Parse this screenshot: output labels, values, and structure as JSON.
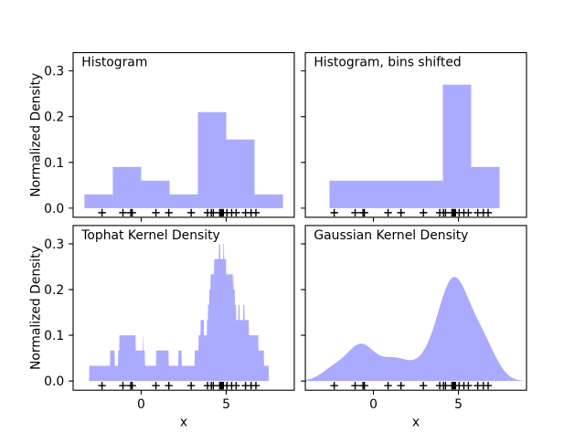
{
  "figure": {
    "background": "#ffffff",
    "description": "2x2 grid of density-estimation panels with shared axes"
  },
  "chart_data": {
    "type": "area",
    "xlabel": "x",
    "ylabel": "Normalized Density",
    "xlim": [
      -4,
      9
    ],
    "ylim": [
      -0.02,
      0.34
    ],
    "grid": false,
    "legend": null,
    "xticks": {
      "values": [
        0,
        5
      ],
      "labels": [
        "0",
        "5"
      ]
    },
    "yticks": {
      "values": [
        0.0,
        0.1,
        0.2,
        0.3
      ],
      "labels": [
        "0.0",
        "0.1",
        "0.2",
        "0.3"
      ]
    },
    "fill_color": "#aaaaff",
    "marker": {
      "symbol": "+",
      "color": "#000000",
      "y": -0.01
    },
    "title_position": [
      -3.5,
      0.31
    ],
    "data_points": [
      1.6243,
      -0.6118,
      -0.5282,
      -1.073,
      0.8654,
      -2.3015,
      6.7448,
      4.2388,
      5.319,
      4.7506,
      6.4621,
      2.9399,
      4.6776,
      4.6159,
      6.1338,
      3.9001,
      4.8276,
      4.1221,
      5.0422,
      5.5828
    ],
    "panels": [
      {
        "id": "histogram",
        "title": "Histogram",
        "kind": "histogram",
        "bin_edges": [
          -5,
          -3.3333,
          -1.6667,
          0,
          1.6667,
          3.3333,
          5,
          6.6667,
          8.3333,
          10
        ],
        "densities": [
          0,
          0.03,
          0.09,
          0.06,
          0.03,
          0.21,
          0.15,
          0.03,
          0
        ]
      },
      {
        "id": "histogram-bins-shifted",
        "title": "Histogram, bins shifted",
        "kind": "histogram",
        "bin_edges": [
          -4.25,
          -2.5833,
          -0.9167,
          0.75,
          2.4167,
          4.0833,
          5.75,
          7.4167,
          9.0833,
          10.75
        ],
        "densities": [
          0,
          0.06,
          0.06,
          0.06,
          0.06,
          0.27,
          0.09,
          0,
          0
        ]
      },
      {
        "id": "tophat-kernel-density",
        "title": "Tophat Kernel Density",
        "kind": "kde",
        "kernel": "tophat",
        "bandwidth": 0.75,
        "curve_range": [
          -5,
          10
        ],
        "peak_density": 0.3
      },
      {
        "id": "gaussian-kernel-density",
        "title": "Gaussian Kernel Density",
        "kind": "kde",
        "kernel": "gaussian",
        "bandwidth": 0.75,
        "curve_range": [
          -5,
          10
        ],
        "peak_density": 0.227
      }
    ]
  }
}
